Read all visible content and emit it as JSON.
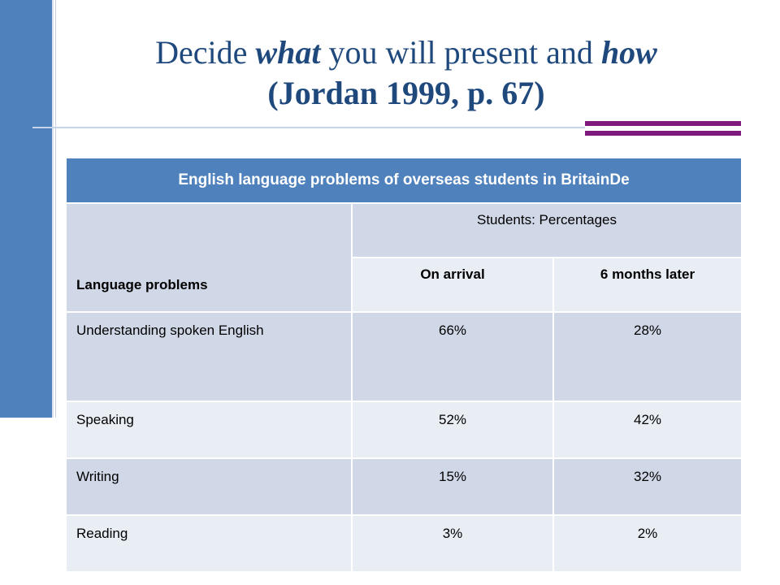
{
  "slide": {
    "title_line1_a": "Decide ",
    "title_line1_b": "what",
    "title_line1_c": " you will present and ",
    "title_line1_d": "how",
    "title_line2": "(Jordan 1999, p. 67)"
  },
  "table": {
    "caption": "English language problems of overseas students in BritainDe",
    "col_label": "Language problems",
    "group_header": "Students: Percentages",
    "sub_headers": [
      "On arrival",
      "6 months later"
    ],
    "rows": [
      {
        "problem": "Understanding spoken English",
        "on_arrival": "66%",
        "six_months": "28%"
      },
      {
        "problem": "Speaking",
        "on_arrival": "52%",
        "six_months": "42%"
      },
      {
        "problem": "Writing",
        "on_arrival": "15%",
        "six_months": "32%"
      },
      {
        "problem": "Reading",
        "on_arrival": "3%",
        "six_months": "2%"
      }
    ]
  },
  "colors": {
    "accent_blue": "#4f81bd",
    "title_blue": "#1f497d",
    "accent_purple": "#7e1a7e"
  }
}
